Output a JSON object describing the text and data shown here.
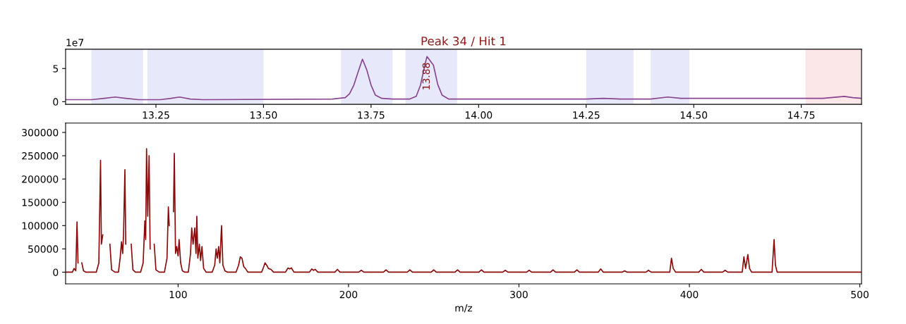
{
  "chart_data": [
    {
      "type": "line",
      "title": "Peak 34 / Hit 1",
      "x": [
        13.04,
        13.1,
        13.13,
        13.155,
        13.18,
        13.21,
        13.26,
        13.285,
        13.305,
        13.33,
        13.36,
        13.66,
        13.69,
        13.7,
        13.71,
        13.72,
        13.73,
        13.74,
        13.75,
        13.76,
        13.775,
        13.8,
        13.84,
        13.855,
        13.865,
        13.875,
        13.88,
        13.895,
        13.905,
        13.915,
        13.93,
        13.96,
        14.25,
        14.29,
        14.33,
        14.4,
        14.44,
        14.47,
        14.8,
        14.85,
        14.87,
        14.89
      ],
      "series": [
        {
          "color": "#87468f",
          "values": [
            0.3,
            0.3,
            0.5,
            0.7,
            0.5,
            0.3,
            0.3,
            0.5,
            0.7,
            0.4,
            0.3,
            0.4,
            0.6,
            1.2,
            2.5,
            4.5,
            6.4,
            4.8,
            2.5,
            1.0,
            0.5,
            0.4,
            0.4,
            0.8,
            2.5,
            5.5,
            6.8,
            5.5,
            2.6,
            1.0,
            0.4,
            0.4,
            0.4,
            0.5,
            0.4,
            0.4,
            0.7,
            0.5,
            0.5,
            0.8,
            0.6,
            0.5
          ]
        }
      ],
      "xlim": [
        13.04,
        14.89
      ],
      "xticks": [
        {
          "value": 13.25,
          "label": "13.25"
        },
        {
          "value": 13.5,
          "label": "13.50"
        },
        {
          "value": 13.75,
          "label": "13.75"
        },
        {
          "value": 14.0,
          "label": "14.00"
        },
        {
          "value": 14.25,
          "label": "14.25"
        },
        {
          "value": 14.5,
          "label": "14.50"
        },
        {
          "value": 14.75,
          "label": "14.75"
        }
      ],
      "ylim": [
        -0.4,
        7.9
      ],
      "yticks": [
        0,
        5
      ],
      "bands": [
        {
          "axis": "x",
          "from": 13.1,
          "to": 13.22,
          "color": "#e8e8fb"
        },
        {
          "axis": "x",
          "from": 13.23,
          "to": 13.5,
          "color": "#e8e8fb"
        },
        {
          "axis": "x",
          "from": 13.68,
          "to": 13.8,
          "color": "#e8e8fb"
        },
        {
          "axis": "x",
          "from": 13.83,
          "to": 13.95,
          "color": "#e8e8fb"
        },
        {
          "axis": "x",
          "from": 14.25,
          "to": 14.36,
          "color": "#e8e8fb"
        },
        {
          "axis": "x",
          "from": 14.4,
          "to": 14.49,
          "color": "#e8e8fb"
        },
        {
          "axis": "x",
          "from": 14.76,
          "to": 14.89,
          "color": "#fbe6e8"
        }
      ],
      "annotations": [
        {
          "text": "13.88",
          "x": 13.88,
          "y": 6.8
        },
        "1e7"
      ],
      "grid": false
    },
    {
      "type": "line",
      "xlabel": "m/z",
      "x": [
        34,
        38,
        39,
        40,
        40.7,
        41.3,
        41.8,
        42.8,
        43.5,
        44.5,
        46,
        52,
        53.5,
        54.5,
        55,
        55.8,
        56.3,
        57,
        57.5,
        58.8,
        60,
        61,
        63,
        65,
        66,
        66.8,
        67.5,
        68,
        68.8,
        69.3,
        70.2,
        71.6,
        72.5,
        73.5,
        75,
        78,
        79.5,
        80.5,
        81,
        81.5,
        82.2,
        83,
        83.6,
        84.3,
        85.4,
        86,
        87,
        89,
        92,
        93.5,
        94.3,
        94.8,
        95.3,
        96.6,
        97.3,
        97.8,
        98.5,
        99.2,
        100,
        100.6,
        101.5,
        102.5,
        104,
        106,
        107.3,
        108,
        108.8,
        109.8,
        110.5,
        111,
        111.6,
        112.5,
        113.2,
        114,
        115,
        116.5,
        120,
        121.5,
        122.3,
        123,
        123.8,
        124.5,
        125.5,
        126.3,
        127.5,
        129,
        134,
        135.5,
        136.5,
        137.5,
        138.5,
        139.5,
        141,
        149,
        150.3,
        151,
        152,
        153,
        154.5,
        156,
        163,
        164.5,
        165.5,
        166.5,
        168,
        177,
        178.5,
        179.5,
        180.5,
        182,
        192,
        193.5,
        195,
        206,
        207.5,
        209,
        220.5,
        222,
        223.5,
        234.5,
        236,
        237.5,
        248.5,
        250,
        251.5,
        262.5,
        264,
        265.5,
        276.5,
        278,
        279.5,
        290.5,
        292,
        293.5,
        304.5,
        306,
        307.5,
        318.5,
        320,
        321.5,
        332.5,
        334,
        335.5,
        346.5,
        348,
        349.5,
        360.5,
        362,
        363.5,
        374.5,
        376,
        377.5,
        388.5,
        389.5,
        390.5,
        392,
        405.5,
        407,
        408.5,
        419.5,
        421,
        422.5,
        431,
        432,
        433,
        434.3,
        435.3,
        436.5,
        448.5,
        449.7,
        450.5,
        451.5,
        501
      ],
      "series": [
        {
          "color": "#8b0a0a",
          "values": [
            0,
            0,
            8000,
            3000,
            108000,
            20000,
            null,
            null,
            20000,
            3000,
            0,
            0,
            20000,
            240000,
            60000,
            80000,
            null,
            null,
            null,
            null,
            60000,
            5000,
            0,
            0,
            30000,
            65000,
            40000,
            80000,
            220000,
            60000,
            null,
            null,
            60000,
            5000,
            0,
            0,
            20000,
            110000,
            70000,
            265000,
            120000,
            250000,
            50000,
            null,
            null,
            60000,
            5000,
            0,
            0,
            30000,
            140000,
            100000,
            null,
            null,
            130000,
            255000,
            40000,
            55000,
            35000,
            70000,
            20000,
            3000,
            0,
            0,
            40000,
            95000,
            60000,
            95000,
            40000,
            120000,
            30000,
            60000,
            25000,
            55000,
            8000,
            0,
            0,
            15000,
            50000,
            30000,
            55000,
            20000,
            100000,
            15000,
            3000,
            0,
            0,
            15000,
            33000,
            30000,
            12000,
            8000,
            0,
            0,
            12000,
            20000,
            15000,
            8000,
            6000,
            0,
            0,
            9000,
            7000,
            9000,
            0,
            0,
            7000,
            4000,
            6000,
            0,
            0,
            6000,
            0,
            0,
            4000,
            0,
            0,
            5000,
            0,
            0,
            5000,
            0,
            0,
            5000,
            0,
            0,
            5000,
            0,
            0,
            5000,
            0,
            0,
            4000,
            0,
            0,
            4000,
            0,
            0,
            5000,
            0,
            0,
            5000,
            0,
            0,
            7000,
            0,
            0,
            3000,
            0,
            0,
            4000,
            0,
            0,
            30000,
            8000,
            0,
            0,
            6000,
            0,
            0,
            4000,
            0,
            0,
            33000,
            8000,
            38000,
            8000,
            0,
            0,
            70000,
            15000,
            0,
            0
          ]
        }
      ],
      "xlim": [
        34,
        501
      ],
      "xticks": [
        100,
        200,
        300,
        400,
        500
      ],
      "ylim": [
        -25000,
        320000
      ],
      "yticks": [
        0,
        50000,
        100000,
        150000,
        200000,
        250000,
        300000
      ],
      "grid": false
    }
  ]
}
